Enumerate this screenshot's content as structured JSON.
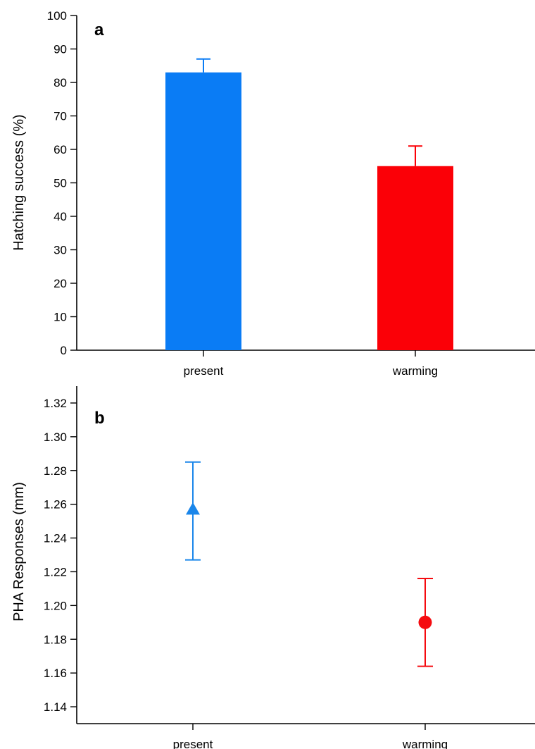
{
  "chart_data": [
    {
      "type": "bar",
      "panel_label": "a",
      "categories": [
        "present",
        "warming"
      ],
      "values": [
        83,
        55
      ],
      "error_upper": [
        87,
        61
      ],
      "colors": [
        "#0a7cf5",
        "#fb0007"
      ],
      "ylabel": "Hatching success (%)",
      "xlabel": "",
      "ylim": [
        0,
        100
      ],
      "yticks": [
        "0",
        "10",
        "20",
        "30",
        "40",
        "50",
        "60",
        "70",
        "80",
        "90",
        "100"
      ],
      "grid": false
    },
    {
      "type": "scatter",
      "panel_label": "b",
      "categories": [
        "present",
        "warming"
      ],
      "values": [
        1.257,
        1.19
      ],
      "error_lower": [
        1.227,
        1.164
      ],
      "error_upper": [
        1.285,
        1.216
      ],
      "markers": [
        "triangle",
        "circle"
      ],
      "colors": [
        "#1a86ea",
        "#f50b10"
      ],
      "ylabel": "PHA Responses (mm)",
      "xlabel": "",
      "ylim": [
        1.13,
        1.33
      ],
      "yticks": [
        "1.14",
        "1.16",
        "1.18",
        "1.20",
        "1.22",
        "1.24",
        "1.26",
        "1.28",
        "1.30",
        "1.32"
      ],
      "grid": false
    }
  ]
}
